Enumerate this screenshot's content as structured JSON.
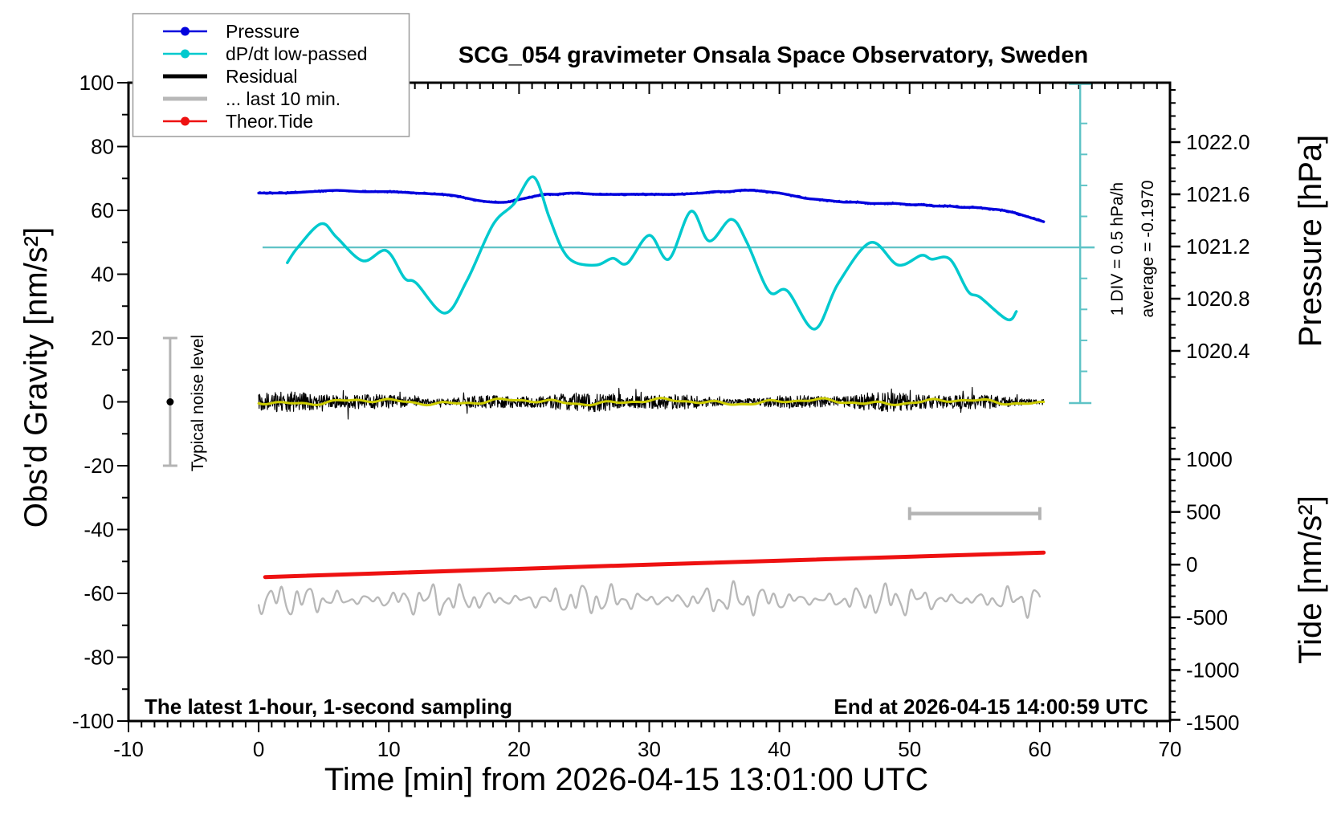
{
  "title": "SCG_054 gravimeter Onsala Space Observatory, Sweden",
  "legend": {
    "items": [
      {
        "label": "Pressure",
        "color": "#0202dd",
        "style": "line-dot"
      },
      {
        "label": "dP/dt low-passed",
        "color": "#00c9ce",
        "style": "line-dot"
      },
      {
        "label": "Residual",
        "color": "#000000",
        "style": "thick-line"
      },
      {
        "label": "... last 10 min.",
        "color": "#b8b8b8",
        "style": "thick-line"
      },
      {
        "label": "Theor.Tide",
        "color": "#ee1111",
        "style": "line-dot"
      }
    ]
  },
  "axes": {
    "x": {
      "title": "Time [min] from 2026-04-15 13:01:00 UTC",
      "min": -10,
      "max": 70,
      "major_step": 10,
      "minor_step": 1,
      "major_tick_labels": [
        "-10",
        "0",
        "10",
        "20",
        "30",
        "40",
        "50",
        "60",
        "70"
      ]
    },
    "y_gravity": {
      "title": "Obs'd Gravity [nm/s²]",
      "min": -100,
      "max": 100,
      "major_step": 20,
      "minor_step": 10,
      "major_tick_labels": [
        "100",
        "80",
        "60",
        "40",
        "20",
        "0",
        "-20",
        "-40",
        "-60",
        "-80",
        "-100"
      ]
    },
    "y_pressure": {
      "title": "Pressure [hPa]",
      "minor_step": 0.1,
      "tick_values": [
        1022.0,
        1021.6,
        1021.2,
        1020.8,
        1020.4
      ],
      "tick_labels": [
        "1022.0",
        "1021.6",
        "1021.2",
        "1020.8",
        "1020.4"
      ]
    },
    "y_tide": {
      "title": "Tide [nm/s²]",
      "minor_step": 100,
      "tick_values": [
        1000,
        500,
        0,
        -500,
        -1000,
        -1500
      ],
      "tick_labels": [
        "1000",
        "500",
        "0",
        "-500",
        "-1000",
        "-1500"
      ]
    }
  },
  "annotations": {
    "aux_axis_note": "1 DIV = 0.5 hPa/h",
    "average_note": "average = -0.1970",
    "noise_bar_label": "Typical noise level",
    "footer_left": "The latest 1-hour, 1-second sampling",
    "footer_right": "End at 2026-04-15 14:00:59 UTC"
  },
  "chart_data": {
    "type": "line",
    "x_unit": "minutes from 2026-04-15 13:01:00 UTC",
    "x_range": [
      -10,
      70
    ],
    "grid": false,
    "legend_position": "top-left",
    "series": [
      {
        "name": "Pressure",
        "unit": "hPa",
        "axis": "y_pressure",
        "color": "#0202dd",
        "points": [
          [
            0,
            1021.61
          ],
          [
            2,
            1021.61
          ],
          [
            4,
            1021.62
          ],
          [
            6,
            1021.63
          ],
          [
            8,
            1021.62
          ],
          [
            10,
            1021.62
          ],
          [
            12,
            1021.61
          ],
          [
            14,
            1021.6
          ],
          [
            15,
            1021.59
          ],
          [
            16,
            1021.57
          ],
          [
            17,
            1021.55
          ],
          [
            18,
            1021.54
          ],
          [
            19,
            1021.54
          ],
          [
            20,
            1021.56
          ],
          [
            21,
            1021.58
          ],
          [
            22,
            1021.6
          ],
          [
            23,
            1021.6
          ],
          [
            24,
            1021.61
          ],
          [
            26,
            1021.6
          ],
          [
            28,
            1021.6
          ],
          [
            30,
            1021.6
          ],
          [
            32,
            1021.6
          ],
          [
            34,
            1021.61
          ],
          [
            35,
            1021.62
          ],
          [
            36,
            1021.62
          ],
          [
            37,
            1021.63
          ],
          [
            38,
            1021.63
          ],
          [
            39,
            1021.62
          ],
          [
            40,
            1021.61
          ],
          [
            41,
            1021.59
          ],
          [
            42,
            1021.57
          ],
          [
            43,
            1021.56
          ],
          [
            44,
            1021.55
          ],
          [
            45,
            1021.54
          ],
          [
            46,
            1021.54
          ],
          [
            47,
            1021.53
          ],
          [
            48,
            1021.53
          ],
          [
            49,
            1021.53
          ],
          [
            50,
            1021.52
          ],
          [
            51,
            1021.52
          ],
          [
            52,
            1021.51
          ],
          [
            53,
            1021.51
          ],
          [
            54,
            1021.5
          ],
          [
            55,
            1021.5
          ],
          [
            56,
            1021.49
          ],
          [
            57,
            1021.48
          ],
          [
            58,
            1021.46
          ],
          [
            59,
            1021.43
          ],
          [
            60.3,
            1021.39
          ]
        ]
      },
      {
        "name": "dP/dt low-passed",
        "axis": "gravity_scale_relative",
        "color": "#00c9ce",
        "note": "1 division = 0.5 hPa/h; horizontal reference line drawn at gravity-scale 48.4",
        "points": [
          [
            2.2,
            43.6
          ],
          [
            3,
            48.4
          ],
          [
            4.8,
            55.8
          ],
          [
            6,
            51.5
          ],
          [
            8,
            44.2
          ],
          [
            9.8,
            47.4
          ],
          [
            11.2,
            38.8
          ],
          [
            12.1,
            37.2
          ],
          [
            14.3,
            27.8
          ],
          [
            16,
            38
          ],
          [
            18,
            55.5
          ],
          [
            19.6,
            62
          ],
          [
            21.1,
            70.5
          ],
          [
            22.3,
            58
          ],
          [
            23.3,
            48
          ],
          [
            24.3,
            43.7
          ],
          [
            26,
            42.9
          ],
          [
            27.2,
            45
          ],
          [
            28.3,
            43.4
          ],
          [
            30,
            52.2
          ],
          [
            31.5,
            44.7
          ],
          [
            33.2,
            59.7
          ],
          [
            34.6,
            50.4
          ],
          [
            36.3,
            57.2
          ],
          [
            37.5,
            50
          ],
          [
            39.2,
            34.6
          ],
          [
            40.6,
            34.8
          ],
          [
            42.7,
            22.8
          ],
          [
            44.5,
            37
          ],
          [
            47,
            49.9
          ],
          [
            49.1,
            42.9
          ],
          [
            50.9,
            45.9
          ],
          [
            51.7,
            44.7
          ],
          [
            53.1,
            44.7
          ],
          [
            54.5,
            34.6
          ],
          [
            55.4,
            32.8
          ],
          [
            57.5,
            25.8
          ],
          [
            58.2,
            28.3
          ]
        ]
      },
      {
        "name": "Theor.Tide",
        "unit": "nm/s2",
        "axis": "y_tide",
        "color": "#ee1111",
        "points": [
          [
            0.5,
            -118
          ],
          [
            30,
            0
          ],
          [
            60.3,
            114
          ]
        ]
      },
      {
        "name": "Residual",
        "axis": "y_gravity",
        "color": "#000000",
        "description": "1-second residual noise band centered on 0",
        "center": 0,
        "typical_amplitude": 5,
        "max_spike": 9,
        "x_range": [
          0,
          60.3
        ]
      },
      {
        "name": "Residual smoothed",
        "axis": "y_gravity",
        "color": "#cccc00",
        "description": "smoothed residual overlay",
        "center": 0,
        "amplitude": 1,
        "x_range": [
          0,
          60.3
        ]
      },
      {
        "name": "... last 10 min.",
        "axis": "y_gravity",
        "color": "#b8b8b8",
        "description": "enlarged residual trace plotted near -62 on the gravity scale",
        "center": -62,
        "amplitude_range": [
          2,
          8
        ],
        "oscillation_period_min": 1.05,
        "x_range": [
          0,
          60
        ]
      }
    ],
    "aux_elements": {
      "dpdt_reference_line": {
        "y_gravity_scale": 48.4,
        "x_range_min": [
          0.3,
          63.1
        ]
      },
      "dpdt_scale_axis": {
        "x_min": 63.1,
        "division_gravity_units": 9.7,
        "division_value": "0.5 hPa/h"
      },
      "noise_error_bar": {
        "x_min": -6.8,
        "center": 0,
        "half_range": 20
      },
      "last10_scale_bar": {
        "x_range_min": [
          50,
          60
        ],
        "y_gravity": -35
      }
    }
  }
}
